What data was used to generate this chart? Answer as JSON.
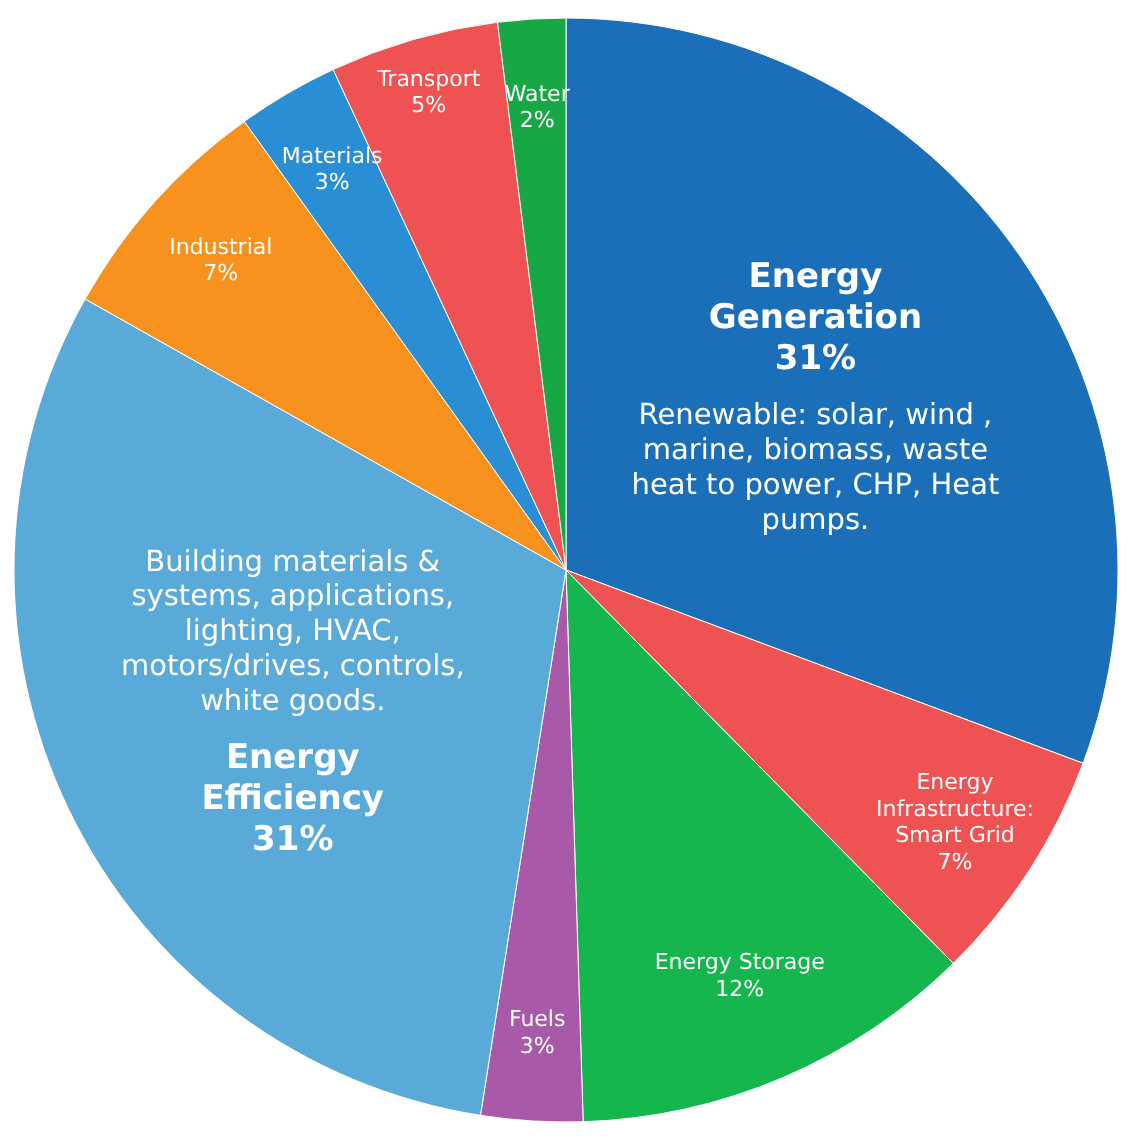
{
  "chart_data": {
    "type": "pie",
    "categories": [
      "Energy Generation",
      "Energy Infrastructure: Smart Grid",
      "Energy Storage",
      "Fuels",
      "Energy Efficiency",
      "Industrial",
      "Materials",
      "Transport",
      "Water"
    ],
    "values": [
      31,
      7,
      12,
      3,
      31,
      7,
      3,
      5,
      2
    ],
    "colors": [
      "#1a6fb8",
      "#ef5252",
      "#16b64e",
      "#a85aa8",
      "#5aaad9",
      "#f7921e",
      "#2a8ed4",
      "#ef5252",
      "#17a845"
    ],
    "value_labels": [
      "31%",
      "7%",
      "12%",
      "3%",
      "31%",
      "7%",
      "3%",
      "5%",
      "2%"
    ],
    "annotations": [
      {
        "text": "Renewable: solar, wind , marine, biomass, waste heat to power, CHP, Heat pumps.",
        "x": "Energy Generation"
      },
      {
        "text": "Building materials & systems, applications, lighting, HVAC, motors/drives, controls, white goods.",
        "x": "Energy Efficiency"
      }
    ]
  }
}
